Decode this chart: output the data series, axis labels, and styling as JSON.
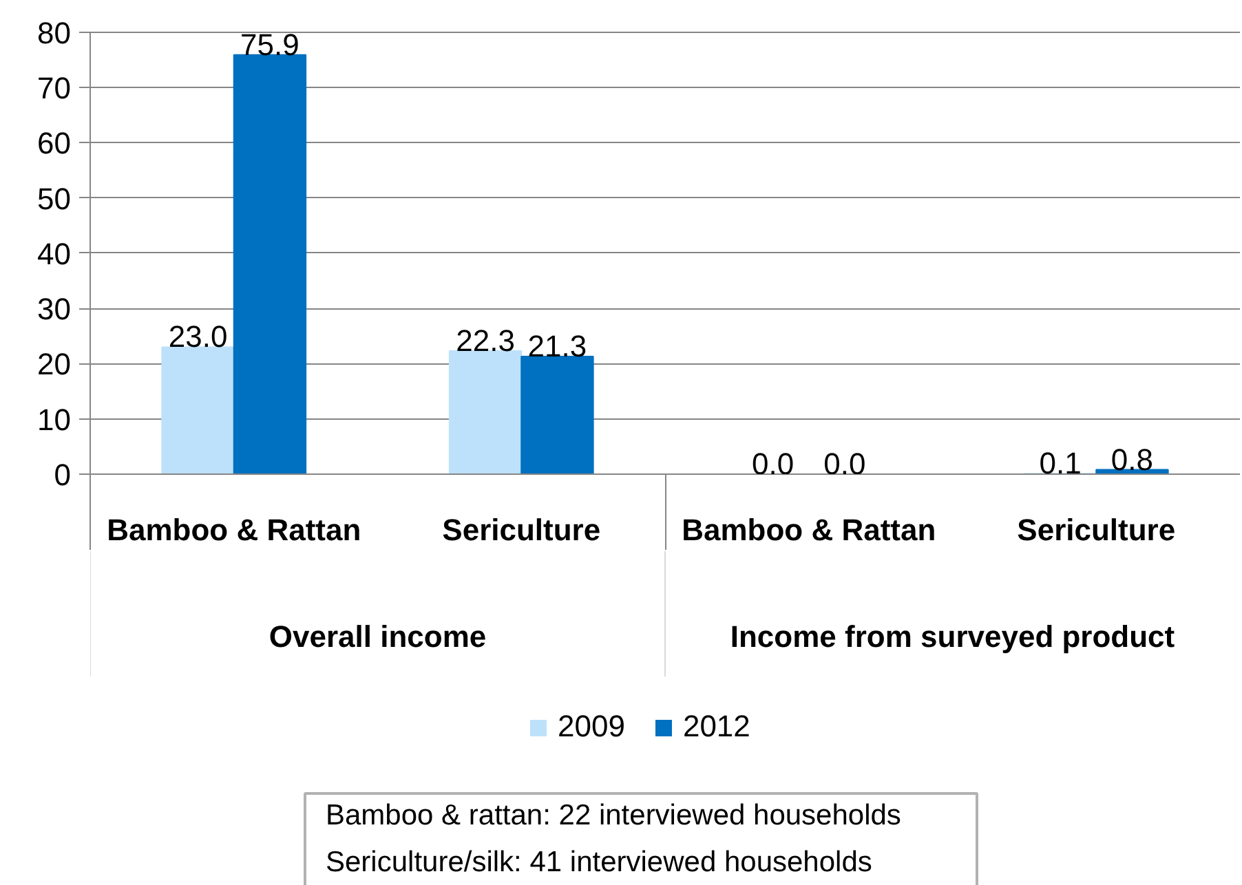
{
  "chart_data": {
    "type": "bar",
    "categories": [
      "Bamboo & Rattan",
      "Sericulture",
      "Bamboo & Rattan",
      "Sericulture"
    ],
    "series": [
      {
        "name": "2009",
        "color": "#bde1fb",
        "values": [
          23.0,
          22.3,
          0.0,
          0.1
        ],
        "value_labels": [
          "23.0",
          "22.3",
          "0.0",
          "0.1"
        ]
      },
      {
        "name": "2012",
        "color": "#0070c0",
        "values": [
          75.9,
          21.3,
          0.0,
          0.8
        ],
        "value_labels": [
          "75.9",
          "21.3",
          "0.0",
          "0.8"
        ]
      }
    ],
    "ylim": [
      0,
      80
    ],
    "yticks": [
      0,
      10,
      20,
      30,
      40,
      50,
      60,
      70,
      80
    ],
    "grid": "y",
    "legend": "bottom",
    "annotations": [
      "Overall income",
      "Income from surveyed product",
      "Bamboo & rattan: 22 interviewed households\nSericulture/silk: 41 interviewed households"
    ]
  }
}
